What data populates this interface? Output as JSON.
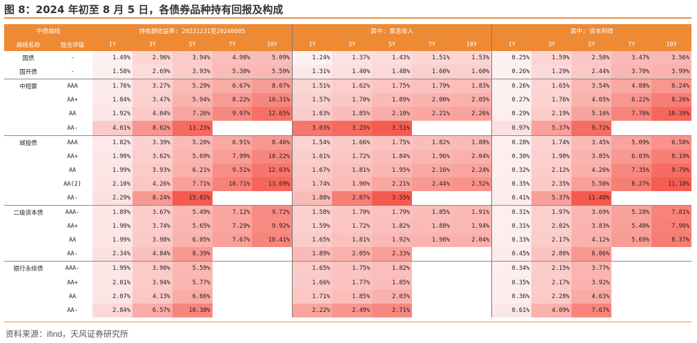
{
  "title": "图 8：2024 年初至 8 月 5 日，各债券品种持有回报及构成",
  "source": "资料来源：ifind，天风证券研究所",
  "header": {
    "curve_label": "中债曲线",
    "groups": [
      "持有期收益率: 20231231至20240805",
      "其中: 票息收入",
      "其中: 资本利得"
    ],
    "curve_name": "曲线名称",
    "rating": "隐含评级",
    "tenors": [
      "1Y",
      "3Y",
      "5Y",
      "7Y",
      "10Y"
    ]
  },
  "colors": {
    "accent": "#ee8a34",
    "heat_low": "#fdf1f2",
    "heat_high": "#f55a4e"
  },
  "rows": [
    {
      "cat": "国债",
      "rating": "-",
      "hold": [
        "1.49%",
        "2.96%",
        "3.94%",
        "4.98%",
        "5.09%"
      ],
      "coupon": [
        "1.24%",
        "1.37%",
        "1.43%",
        "1.51%",
        "1.53%"
      ],
      "gain": [
        "0.25%",
        "1.59%",
        "2.50%",
        "3.47%",
        "3.56%"
      ]
    },
    {
      "cat": "国开债",
      "rating": "-",
      "hold": [
        "1.58%",
        "2.69%",
        "3.93%",
        "5.30%",
        "5.59%"
      ],
      "coupon": [
        "1.31%",
        "1.40%",
        "1.48%",
        "1.60%",
        "1.60%"
      ],
      "gain": [
        "0.26%",
        "1.29%",
        "2.44%",
        "3.70%",
        "3.99%"
      ]
    },
    {
      "cat": "中短票",
      "rating": "AAA",
      "hold": [
        "1.76%",
        "3.27%",
        "5.29%",
        "6.67%",
        "8.07%"
      ],
      "coupon": [
        "1.51%",
        "1.62%",
        "1.75%",
        "1.79%",
        "1.83%"
      ],
      "gain": [
        "0.26%",
        "1.65%",
        "3.54%",
        "4.88%",
        "6.24%"
      ]
    },
    {
      "cat": "",
      "rating": "AA+",
      "hold": [
        "1.84%",
        "3.47%",
        "5.94%",
        "8.22%",
        "10.31%"
      ],
      "coupon": [
        "1.57%",
        "1.70%",
        "1.89%",
        "2.00%",
        "2.05%"
      ],
      "gain": [
        "0.27%",
        "1.76%",
        "4.05%",
        "6.22%",
        "8.26%"
      ]
    },
    {
      "cat": "",
      "rating": "AA",
      "hold": [
        "1.92%",
        "4.04%",
        "7.26%",
        "9.97%",
        "12.65%"
      ],
      "coupon": [
        "1.63%",
        "1.85%",
        "2.10%",
        "2.21%",
        "2.26%"
      ],
      "gain": [
        "0.29%",
        "2.19%",
        "5.16%",
        "7.76%",
        "10.39%"
      ]
    },
    {
      "cat": "",
      "rating": "AA-",
      "hold": [
        "4.01%",
        "8.62%",
        "13.23%",
        "",
        ""
      ],
      "coupon": [
        "3.03%",
        "3.25%",
        "3.51%",
        "",
        ""
      ],
      "gain": [
        "0.97%",
        "5.37%",
        "9.72%",
        "",
        ""
      ]
    },
    {
      "cat": "城投债",
      "rating": "AAA",
      "hold": [
        "1.82%",
        "3.39%",
        "5.20%",
        "6.91%",
        "8.46%"
      ],
      "coupon": [
        "1.54%",
        "1.66%",
        "1.75%",
        "1.82%",
        "1.88%"
      ],
      "gain": [
        "0.28%",
        "1.74%",
        "3.45%",
        "5.09%",
        "6.58%"
      ]
    },
    {
      "cat": "",
      "rating": "AA+",
      "hold": [
        "1.90%",
        "3.62%",
        "5.69%",
        "7.99%",
        "10.22%"
      ],
      "coupon": [
        "1.61%",
        "1.72%",
        "1.84%",
        "1.96%",
        "2.04%"
      ],
      "gain": [
        "0.30%",
        "1.90%",
        "3.85%",
        "6.03%",
        "8.19%"
      ]
    },
    {
      "cat": "",
      "rating": "AA",
      "hold": [
        "1.99%",
        "3.93%",
        "6.21%",
        "9.51%",
        "12.03%"
      ],
      "coupon": [
        "1.67%",
        "1.81%",
        "1.95%",
        "2.16%",
        "2.24%"
      ],
      "gain": [
        "0.32%",
        "2.12%",
        "4.26%",
        "7.35%",
        "9.79%"
      ]
    },
    {
      "cat": "",
      "rating": "AA(2)",
      "hold": [
        "2.10%",
        "4.26%",
        "7.71%",
        "10.71%",
        "13.69%"
      ],
      "coupon": [
        "1.74%",
        "1.90%",
        "2.21%",
        "2.44%",
        "2.52%"
      ],
      "gain": [
        "0.35%",
        "2.35%",
        "5.50%",
        "8.27%",
        "11.18%"
      ]
    },
    {
      "cat": "",
      "rating": "AA-",
      "hold": [
        "2.29%",
        "8.24%",
        "15.02%",
        "",
        ""
      ],
      "coupon": [
        "1.88%",
        "2.87%",
        "3.55%",
        "",
        ""
      ],
      "gain": [
        "0.41%",
        "5.37%",
        "11.48%",
        "",
        ""
      ]
    },
    {
      "cat": "二级资本债",
      "rating": "AAA-",
      "hold": [
        "1.89%",
        "3.67%",
        "5.49%",
        "7.12%",
        "9.72%"
      ],
      "coupon": [
        "1.58%",
        "1.70%",
        "1.79%",
        "1.85%",
        "1.91%"
      ],
      "gain": [
        "0.31%",
        "1.97%",
        "3.69%",
        "5.28%",
        "7.81%"
      ]
    },
    {
      "cat": "",
      "rating": "AA+",
      "hold": [
        "1.90%",
        "3.74%",
        "5.65%",
        "7.29%",
        "9.92%"
      ],
      "coupon": [
        "1.59%",
        "1.72%",
        "1.82%",
        "1.88%",
        "1.94%"
      ],
      "gain": [
        "0.31%",
        "2.02%",
        "3.83%",
        "5.40%",
        "7.98%"
      ]
    },
    {
      "cat": "",
      "rating": "AA",
      "hold": [
        "1.99%",
        "3.98%",
        "6.05%",
        "7.67%",
        "10.41%"
      ],
      "coupon": [
        "1.65%",
        "1.81%",
        "1.92%",
        "1.98%",
        "2.04%"
      ],
      "gain": [
        "0.33%",
        "2.17%",
        "4.12%",
        "5.69%",
        "8.37%"
      ]
    },
    {
      "cat": "",
      "rating": "AA-",
      "hold": [
        "2.34%",
        "4.84%",
        "8.39%",
        "",
        ""
      ],
      "coupon": [
        "1.89%",
        "2.05%",
        "2.33%",
        "",
        ""
      ],
      "gain": [
        "0.45%",
        "2.80%",
        "6.06%",
        "",
        ""
      ]
    },
    {
      "cat": "银行永续债",
      "rating": "AAA-",
      "hold": [
        "1.99%",
        "3.90%",
        "5.59%",
        "",
        ""
      ],
      "coupon": [
        "1.65%",
        "1.75%",
        "1.82%",
        "",
        ""
      ],
      "gain": [
        "0.34%",
        "2.15%",
        "3.77%",
        "",
        ""
      ]
    },
    {
      "cat": "",
      "rating": "AA+",
      "hold": [
        "2.01%",
        "3.94%",
        "5.77%",
        "",
        ""
      ],
      "coupon": [
        "1.66%",
        "1.77%",
        "1.85%",
        "",
        ""
      ],
      "gain": [
        "0.35%",
        "2.17%",
        "3.92%",
        "",
        ""
      ]
    },
    {
      "cat": "",
      "rating": "AA",
      "hold": [
        "2.07%",
        "4.13%",
        "6.66%",
        "",
        ""
      ],
      "coupon": [
        "1.71%",
        "1.85%",
        "2.03%",
        "",
        ""
      ],
      "gain": [
        "0.36%",
        "2.28%",
        "4.63%",
        "",
        ""
      ]
    },
    {
      "cat": "",
      "rating": "AA-",
      "hold": [
        "2.84%",
        "6.57%",
        "10.38%",
        "",
        ""
      ],
      "coupon": [
        "2.22%",
        "2.49%",
        "2.71%",
        "",
        ""
      ],
      "gain": [
        "0.61%",
        "4.09%",
        "7.67%",
        "",
        ""
      ]
    }
  ]
}
